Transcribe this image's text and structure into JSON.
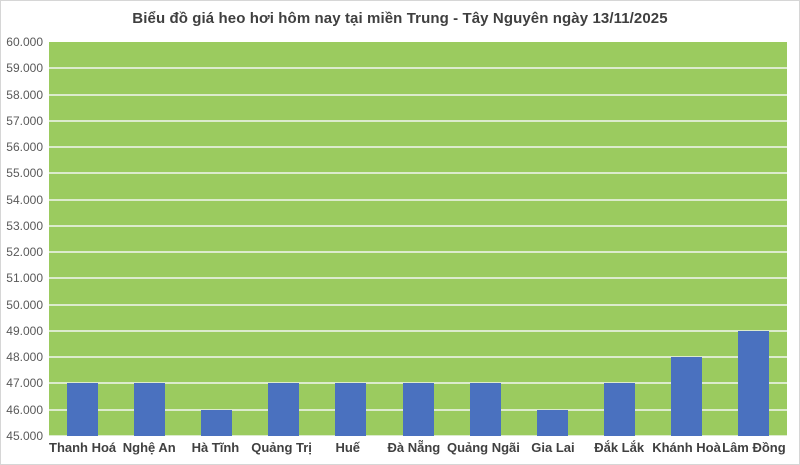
{
  "page": {
    "background": "#FFFFFF",
    "border_color": "#D6D6D6"
  },
  "chart_data": {
    "type": "bar",
    "title": "Biểu đồ giá heo hơi hôm nay tại miền Trung - Tây Nguyên ngày 13/11/2025",
    "categories": [
      "Thanh Hoá",
      "Nghệ An",
      "Hà Tĩnh",
      "Quảng Trị",
      "Huế",
      "Đà Nẵng",
      "Quảng Ngãi",
      "Gia Lai",
      "Đắk Lắk",
      "Khánh Hoà",
      "Lâm Đồng"
    ],
    "values": [
      47000,
      47000,
      46000,
      47000,
      47000,
      47000,
      47000,
      46000,
      47000,
      48000,
      49000
    ],
    "xlabel": "",
    "ylabel": "",
    "ylim": [
      45000,
      60000
    ],
    "ytick_step": 1000,
    "ytick_labels_top_to_bottom": [
      "60.000",
      "59.000",
      "58.000",
      "57.000",
      "56.000",
      "55.000",
      "54.000",
      "53.000",
      "52.000",
      "51.000",
      "50.000",
      "49.000",
      "48.000",
      "47.000",
      "46.000",
      "45.000"
    ],
    "grid": true,
    "legend_position": "none",
    "colors": {
      "bar": "#4A71BF",
      "plot_background": "#9BCB5F",
      "gridline": "#DCEBCC",
      "title_text": "#3F3F3F",
      "ytick_text": "#595959",
      "xtick_text": "#404040"
    }
  }
}
